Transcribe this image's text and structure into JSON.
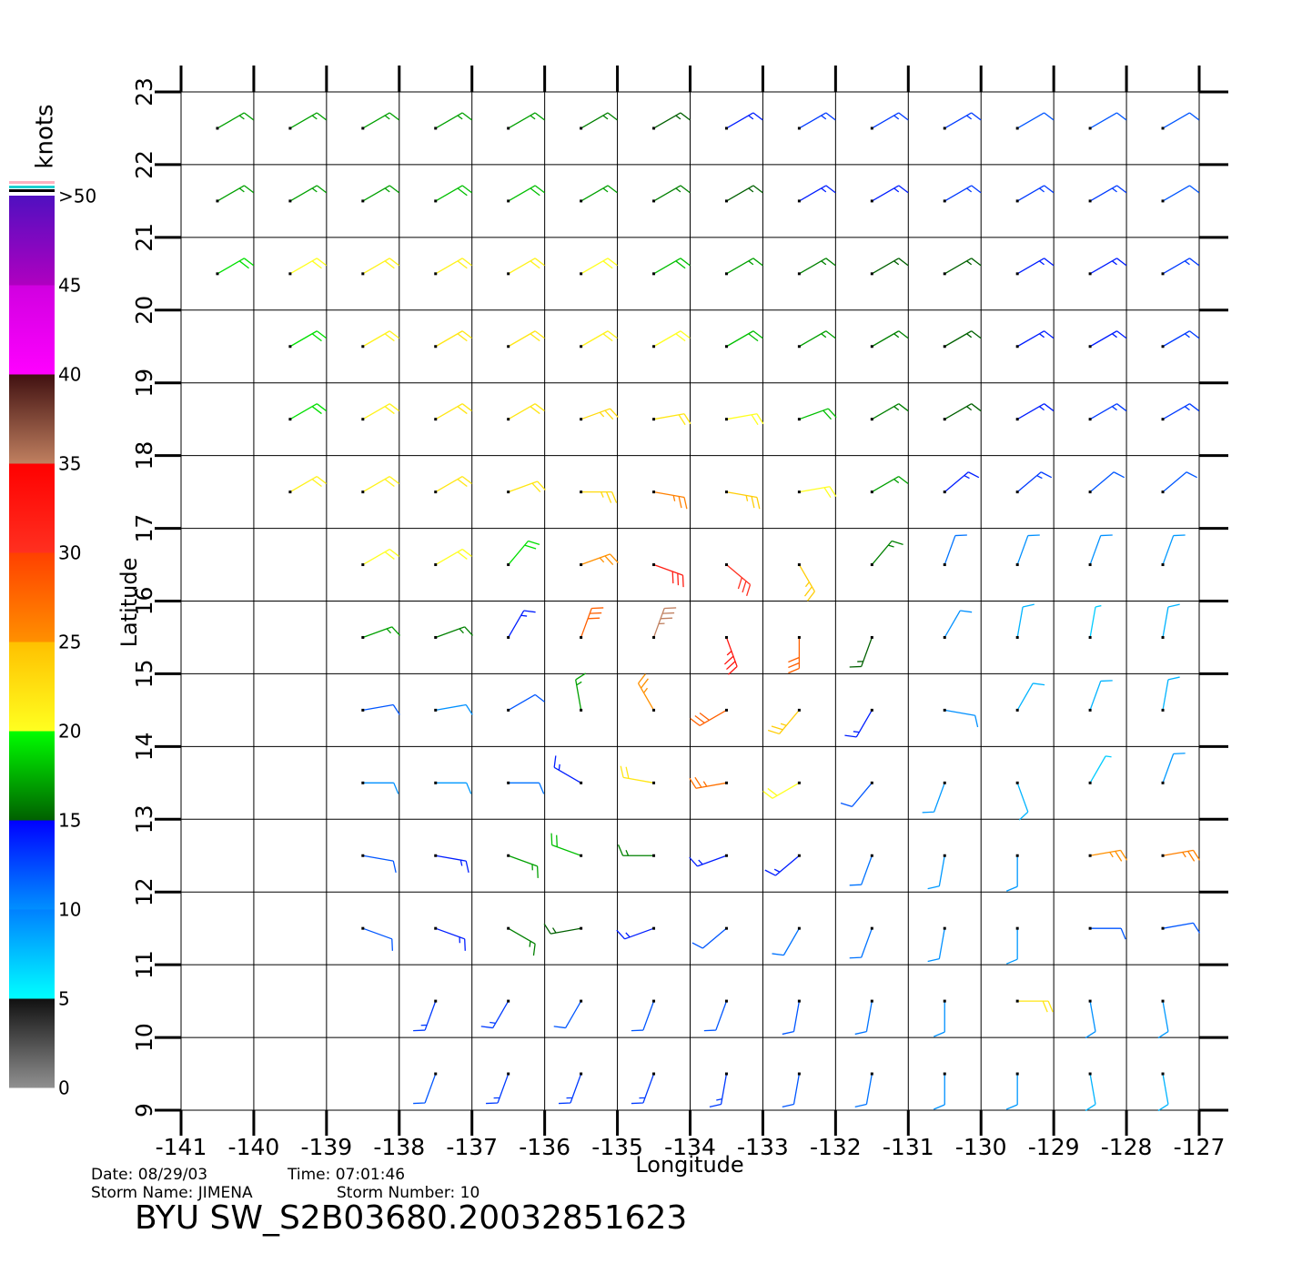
{
  "chart_data": {
    "type": "wind_barbs",
    "title": "BYU SW_S2B03680.20032851623",
    "date": "Date: 08/29/03",
    "time": "Time: 07:01:46",
    "storm_name": "Storm Name: JIMENA",
    "storm_number": "Storm Number: 10",
    "x_label": "Longitude",
    "y_label": "Latitude",
    "xlim": [
      -141,
      -127
    ],
    "ylim": [
      9,
      23
    ],
    "xticks": [
      -141,
      -140,
      -139,
      -138,
      -137,
      -136,
      -135,
      -134,
      -133,
      -132,
      -131,
      -130,
      -129,
      -128,
      -127
    ],
    "yticks": [
      9,
      10,
      11,
      12,
      13,
      14,
      15,
      16,
      17,
      18,
      19,
      20,
      21,
      22,
      23
    ],
    "grid": true,
    "colorbar": {
      "title": "knots",
      "lim": [
        0,
        50
      ],
      "ticks": [
        0,
        5,
        10,
        15,
        20,
        25,
        30,
        35,
        40,
        45,
        {
          "value": 50,
          "label": ">50"
        }
      ],
      "colors": [
        [
          "#909090",
          "#101010"
        ],
        [
          "#00ffff",
          "#0080ff"
        ],
        [
          "#0090ff",
          "#0000ff"
        ],
        [
          "#006000",
          "#00ff00"
        ],
        [
          "#ffff20",
          "#ffc000"
        ],
        [
          "#ff9000",
          "#ff4000"
        ],
        [
          "#ff3020",
          "#ff0000"
        ],
        [
          "#c08060",
          "#401010"
        ],
        [
          "#ff00ff",
          "#d000e0"
        ],
        [
          "#b000c0",
          "#5010c0"
        ]
      ]
    },
    "lon": [
      -140.5,
      -139.5,
      -138.5,
      -137.5,
      -136.5,
      -135.5,
      -134.5,
      -133.5,
      -132.5,
      -131.5,
      -130.5,
      -129.5,
      -128.5,
      -127.5
    ],
    "lat": [
      22.5,
      21.5,
      20.5,
      19.5,
      18.5,
      17.5,
      16.5,
      15.5,
      14.5,
      13.5,
      12.5,
      11.5,
      10.5,
      9.5
    ],
    "speed": [
      [
        17,
        17,
        17,
        17,
        17,
        16,
        15,
        14,
        13,
        13,
        13,
        12,
        12,
        12
      ],
      [
        17,
        17,
        17,
        18,
        18,
        17,
        16,
        15,
        14,
        14,
        13,
        13,
        13,
        12
      ],
      [
        19,
        20,
        21,
        21,
        21,
        20,
        18,
        17,
        16,
        15,
        15,
        14,
        14,
        13
      ],
      [
        null,
        19,
        21,
        22,
        22,
        21,
        20,
        18,
        17,
        16,
        15,
        14,
        14,
        13
      ],
      [
        null,
        19,
        21,
        22,
        22,
        23,
        22,
        20,
        18,
        16,
        15,
        14,
        13,
        13
      ],
      [
        null,
        21,
        21,
        22,
        22,
        23,
        26,
        24,
        20,
        17,
        14,
        13,
        12,
        12
      ],
      [
        null,
        null,
        20,
        20,
        19,
        25,
        32,
        30,
        24,
        16,
        11,
        10,
        10,
        9
      ],
      [
        null,
        null,
        17,
        16,
        14,
        28,
        35,
        33,
        28,
        15,
        10,
        8,
        7,
        8
      ],
      [
        null,
        null,
        12,
        10,
        12,
        17,
        25,
        28,
        24,
        14,
        10,
        8,
        8,
        8
      ],
      [
        null,
        null,
        10,
        9,
        11,
        14,
        22,
        27,
        20,
        12,
        9,
        8,
        7,
        9
      ],
      [
        null,
        null,
        12,
        14,
        17,
        18,
        16,
        14,
        14,
        11,
        9,
        9,
        25,
        26
      ],
      [
        null,
        null,
        12,
        14,
        16,
        15,
        14,
        12,
        11,
        11,
        10,
        9,
        12,
        12
      ],
      [
        null,
        null,
        null,
        13,
        13,
        12,
        12,
        12,
        12,
        11,
        10,
        22,
        10,
        9
      ],
      [
        null,
        null,
        null,
        12,
        13,
        13,
        13,
        13,
        12,
        11,
        10,
        9,
        8,
        8
      ]
    ],
    "direction": [
      [
        60,
        60,
        60,
        60,
        60,
        60,
        60,
        60,
        60,
        60,
        60,
        60,
        60,
        60
      ],
      [
        60,
        60,
        60,
        60,
        60,
        60,
        60,
        60,
        60,
        60,
        60,
        60,
        60,
        60
      ],
      [
        60,
        60,
        60,
        60,
        60,
        60,
        60,
        60,
        60,
        60,
        60,
        60,
        60,
        60
      ],
      [
        null,
        60,
        60,
        60,
        60,
        60,
        60,
        60,
        60,
        60,
        60,
        60,
        60,
        60
      ],
      [
        null,
        60,
        60,
        60,
        60,
        70,
        80,
        80,
        70,
        60,
        60,
        60,
        60,
        60
      ],
      [
        null,
        60,
        60,
        60,
        70,
        90,
        100,
        100,
        80,
        60,
        50,
        50,
        50,
        50
      ],
      [
        null,
        null,
        60,
        60,
        40,
        70,
        110,
        130,
        150,
        40,
        20,
        20,
        20,
        20
      ],
      [
        null,
        null,
        70,
        70,
        30,
        20,
        20,
        160,
        180,
        200,
        30,
        10,
        10,
        10
      ],
      [
        null,
        null,
        80,
        80,
        60,
        350,
        330,
        240,
        220,
        210,
        100,
        30,
        20,
        10
      ],
      [
        null,
        null,
        90,
        90,
        90,
        300,
        280,
        260,
        240,
        220,
        200,
        160,
        30,
        20
      ],
      [
        null,
        null,
        100,
        100,
        110,
        290,
        270,
        250,
        230,
        200,
        190,
        180,
        80,
        80
      ],
      [
        null,
        null,
        110,
        110,
        120,
        260,
        250,
        230,
        210,
        200,
        190,
        180,
        90,
        80
      ],
      [
        null,
        null,
        null,
        200,
        210,
        210,
        200,
        200,
        190,
        190,
        180,
        90,
        170,
        170
      ],
      [
        null,
        null,
        null,
        200,
        200,
        200,
        200,
        190,
        190,
        190,
        180,
        180,
        170,
        170
      ]
    ]
  }
}
